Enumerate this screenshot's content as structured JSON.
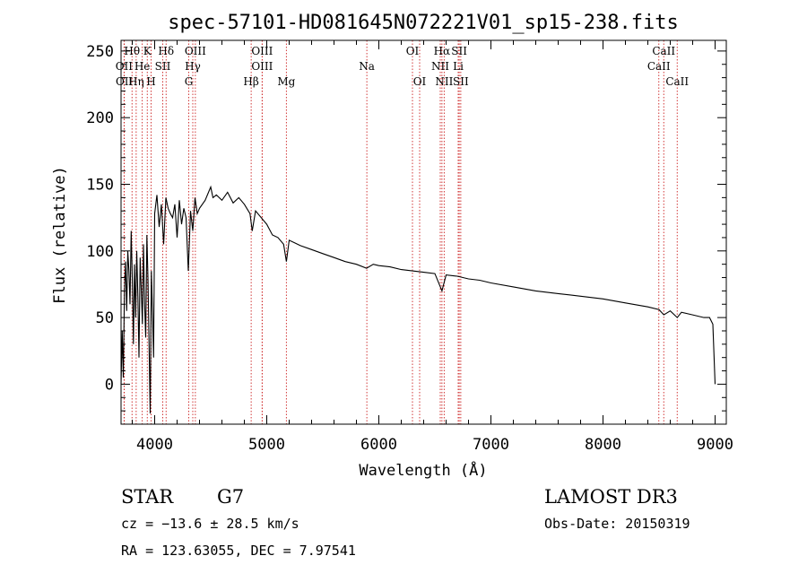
{
  "chart_data": {
    "type": "line",
    "title": "spec-57101-HD081645N072221V01_sp15-238.fits",
    "xlabel": "Wavelength (Å)",
    "ylabel": "Flux (relative)",
    "xlim": [
      3700,
      9100
    ],
    "ylim": [
      -30,
      258
    ],
    "x_ticks": [
      4000,
      5000,
      6000,
      7000,
      8000,
      9000
    ],
    "x_tick_labels": [
      "4000",
      "5000",
      "6000",
      "7000",
      "8000",
      "9000"
    ],
    "y_ticks": [
      0,
      50,
      100,
      150,
      200,
      250
    ],
    "y_tick_labels": [
      "0",
      "50",
      "100",
      "150",
      "200",
      "250"
    ],
    "series": [
      {
        "name": "flux",
        "x": [
          3700,
          3710,
          3720,
          3730,
          3740,
          3750,
          3760,
          3770,
          3780,
          3790,
          3800,
          3810,
          3820,
          3830,
          3840,
          3850,
          3860,
          3870,
          3880,
          3890,
          3900,
          3910,
          3920,
          3930,
          3940,
          3950,
          3960,
          3970,
          3980,
          3990,
          4000,
          4020,
          4040,
          4060,
          4080,
          4100,
          4120,
          4140,
          4160,
          4180,
          4200,
          4220,
          4240,
          4260,
          4280,
          4300,
          4320,
          4340,
          4360,
          4380,
          4400,
          4450,
          4500,
          4520,
          4550,
          4600,
          4650,
          4700,
          4750,
          4800,
          4850,
          4870,
          4900,
          4950,
          5000,
          5050,
          5100,
          5150,
          5175,
          5200,
          5250,
          5300,
          5400,
          5500,
          5600,
          5700,
          5800,
          5890,
          5950,
          6000,
          6100,
          6200,
          6300,
          6400,
          6500,
          6563,
          6600,
          6700,
          6800,
          6900,
          7000,
          7200,
          7400,
          7600,
          7800,
          8000,
          8200,
          8400,
          8500,
          8542,
          8600,
          8662,
          8700,
          8800,
          8900,
          8950,
          8980,
          9000
        ],
        "y": [
          0,
          40,
          5,
          70,
          92,
          55,
          100,
          85,
          60,
          115,
          80,
          30,
          90,
          50,
          100,
          65,
          20,
          95,
          72,
          45,
          105,
          60,
          35,
          112,
          80,
          28,
          -22,
          85,
          55,
          20,
          128,
          142,
          118,
          135,
          105,
          140,
          132,
          128,
          125,
          135,
          110,
          138,
          120,
          132,
          125,
          85,
          130,
          115,
          140,
          128,
          132,
          138,
          148,
          140,
          142,
          138,
          144,
          136,
          140,
          135,
          128,
          115,
          130,
          125,
          120,
          112,
          110,
          105,
          92,
          108,
          106,
          104,
          101,
          98,
          95,
          92,
          90,
          87,
          90,
          89,
          88,
          86,
          85,
          84,
          83,
          70,
          82,
          81,
          79,
          78,
          76,
          73,
          70,
          68,
          66,
          64,
          61,
          58,
          56,
          52,
          55,
          50,
          54,
          52,
          50,
          50,
          45,
          0
        ]
      }
    ],
    "spectral_lines": [
      {
        "name": "Hθ",
        "wavelength": 3798,
        "row": 1
      },
      {
        "name": "K",
        "wavelength": 3934,
        "row": 1
      },
      {
        "name": "Hδ",
        "wavelength": 4102,
        "row": 1
      },
      {
        "name": "OIII",
        "wavelength": 4363,
        "row": 1
      },
      {
        "name": "OIII",
        "wavelength": 4959,
        "row": 1
      },
      {
        "name": "OI",
        "wavelength": 6300,
        "row": 1
      },
      {
        "name": "Hα",
        "wavelength": 6563,
        "row": 1
      },
      {
        "name": "SII",
        "wavelength": 6717,
        "row": 1
      },
      {
        "name": "CaII",
        "wavelength": 8542,
        "row": 1
      },
      {
        "name": "OII",
        "wavelength": 3727,
        "row": 2
      },
      {
        "name": "He",
        "wavelength": 3889,
        "row": 2
      },
      {
        "name": "SII",
        "wavelength": 4072,
        "row": 2
      },
      {
        "name": "Hγ",
        "wavelength": 4340,
        "row": 2
      },
      {
        "name": "OIII",
        "wavelength": 4959,
        "row": 2
      },
      {
        "name": "Na",
        "wavelength": 5893,
        "row": 2
      },
      {
        "name": "NII",
        "wavelength": 6548,
        "row": 2
      },
      {
        "name": "Li",
        "wavelength": 6708,
        "row": 2
      },
      {
        "name": "CaII",
        "wavelength": 8498,
        "row": 2
      },
      {
        "name": "OII",
        "wavelength": 3729,
        "row": 3
      },
      {
        "name": "Hη",
        "wavelength": 3835,
        "row": 3
      },
      {
        "name": "H",
        "wavelength": 3968,
        "row": 3
      },
      {
        "name": "G",
        "wavelength": 4304,
        "row": 3
      },
      {
        "name": "Hβ",
        "wavelength": 4861,
        "row": 3
      },
      {
        "name": "Mg",
        "wavelength": 5175,
        "row": 3
      },
      {
        "name": "OI",
        "wavelength": 6364,
        "row": 3
      },
      {
        "name": "NII",
        "wavelength": 6583,
        "row": 3
      },
      {
        "name": "SII",
        "wavelength": 6731,
        "row": 3
      },
      {
        "name": "CaII",
        "wavelength": 8662,
        "row": 3
      }
    ]
  },
  "info": {
    "object_class": "STAR",
    "subclass": "G7",
    "survey": "LAMOST DR3",
    "redshift": "cz = −13.6 ± 28.5 km/s",
    "obs_date": "Obs-Date: 20150319",
    "coords": "RA = 123.63055, DEC =    7.97541"
  }
}
